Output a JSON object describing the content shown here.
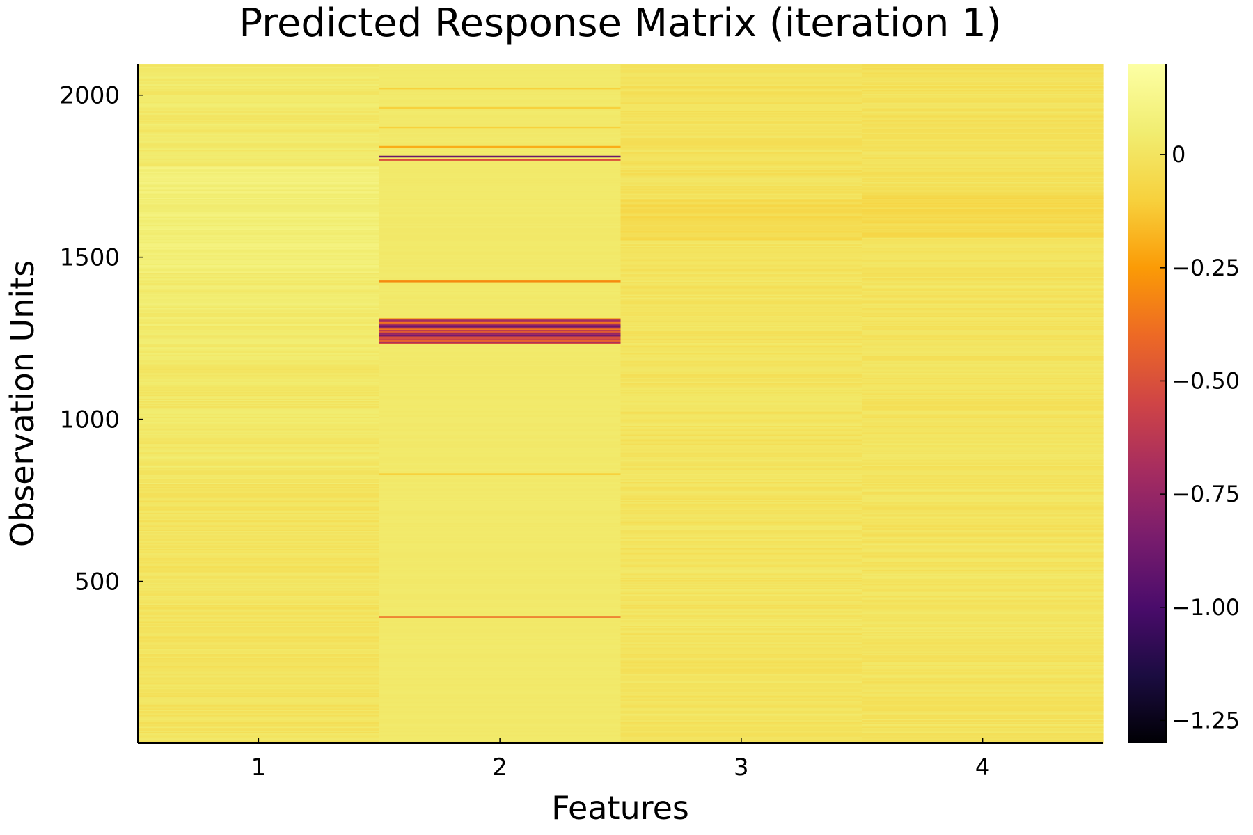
{
  "chart_data": {
    "type": "heatmap",
    "title": "Predicted Response Matrix (iteration 1)",
    "xlabel": "Features",
    "ylabel": "Observation Units",
    "x_categories": [
      "1",
      "2",
      "3",
      "4"
    ],
    "y_range": [
      1,
      2096
    ],
    "y_ticks": [
      500,
      1000,
      1500,
      2000
    ],
    "y_tick_labels": [
      "500",
      "1000",
      "1500",
      "2000"
    ],
    "colorbar": {
      "colormap": "inferno",
      "range": [
        -1.3,
        0.2
      ],
      "ticks": [
        0,
        -0.25,
        -0.5,
        -0.75,
        -1.0,
        -1.25
      ],
      "tick_labels": [
        "0",
        "−0.25",
        "−0.50",
        "−0.75",
        "−1.00",
        "−1.25"
      ]
    },
    "columns": [
      {
        "feature": "1",
        "base": 0.02,
        "segments": [
          {
            "from": 1,
            "to": 400,
            "value": 0.0
          },
          {
            "from": 400,
            "to": 800,
            "value": 0.0
          },
          {
            "from": 800,
            "to": 1200,
            "value": 0.02
          },
          {
            "from": 1200,
            "to": 1450,
            "value": 0.04
          },
          {
            "from": 1450,
            "to": 1780,
            "value": 0.07
          },
          {
            "from": 1780,
            "to": 2096,
            "value": 0.03
          }
        ]
      },
      {
        "feature": "2",
        "base": 0.03,
        "stripes": [
          {
            "at": 390,
            "value": -0.4
          },
          {
            "at": 830,
            "value": -0.1
          },
          {
            "at": 1425,
            "value": -0.3
          },
          {
            "at": 1800,
            "value": -0.5
          },
          {
            "at": 1810,
            "value": -0.9
          },
          {
            "at": 1840,
            "value": -0.2
          },
          {
            "at": 1900,
            "value": -0.1
          },
          {
            "at": 1960,
            "value": -0.1
          },
          {
            "at": 2020,
            "value": -0.1
          }
        ],
        "band": {
          "from": 1230,
          "to": 1310,
          "min": -1.05,
          "max": -0.3
        }
      },
      {
        "feature": "3",
        "base": 0.0,
        "segments": [
          {
            "from": 1,
            "to": 1550,
            "value": 0.0
          },
          {
            "from": 1550,
            "to": 1680,
            "value": -0.05
          },
          {
            "from": 1680,
            "to": 2096,
            "value": -0.01
          }
        ]
      },
      {
        "feature": "4",
        "base": 0.0,
        "segments": [
          {
            "from": 1,
            "to": 1560,
            "value": 0.0
          },
          {
            "from": 1560,
            "to": 1700,
            "value": -0.05
          },
          {
            "from": 1700,
            "to": 2096,
            "value": -0.01
          }
        ]
      }
    ]
  }
}
